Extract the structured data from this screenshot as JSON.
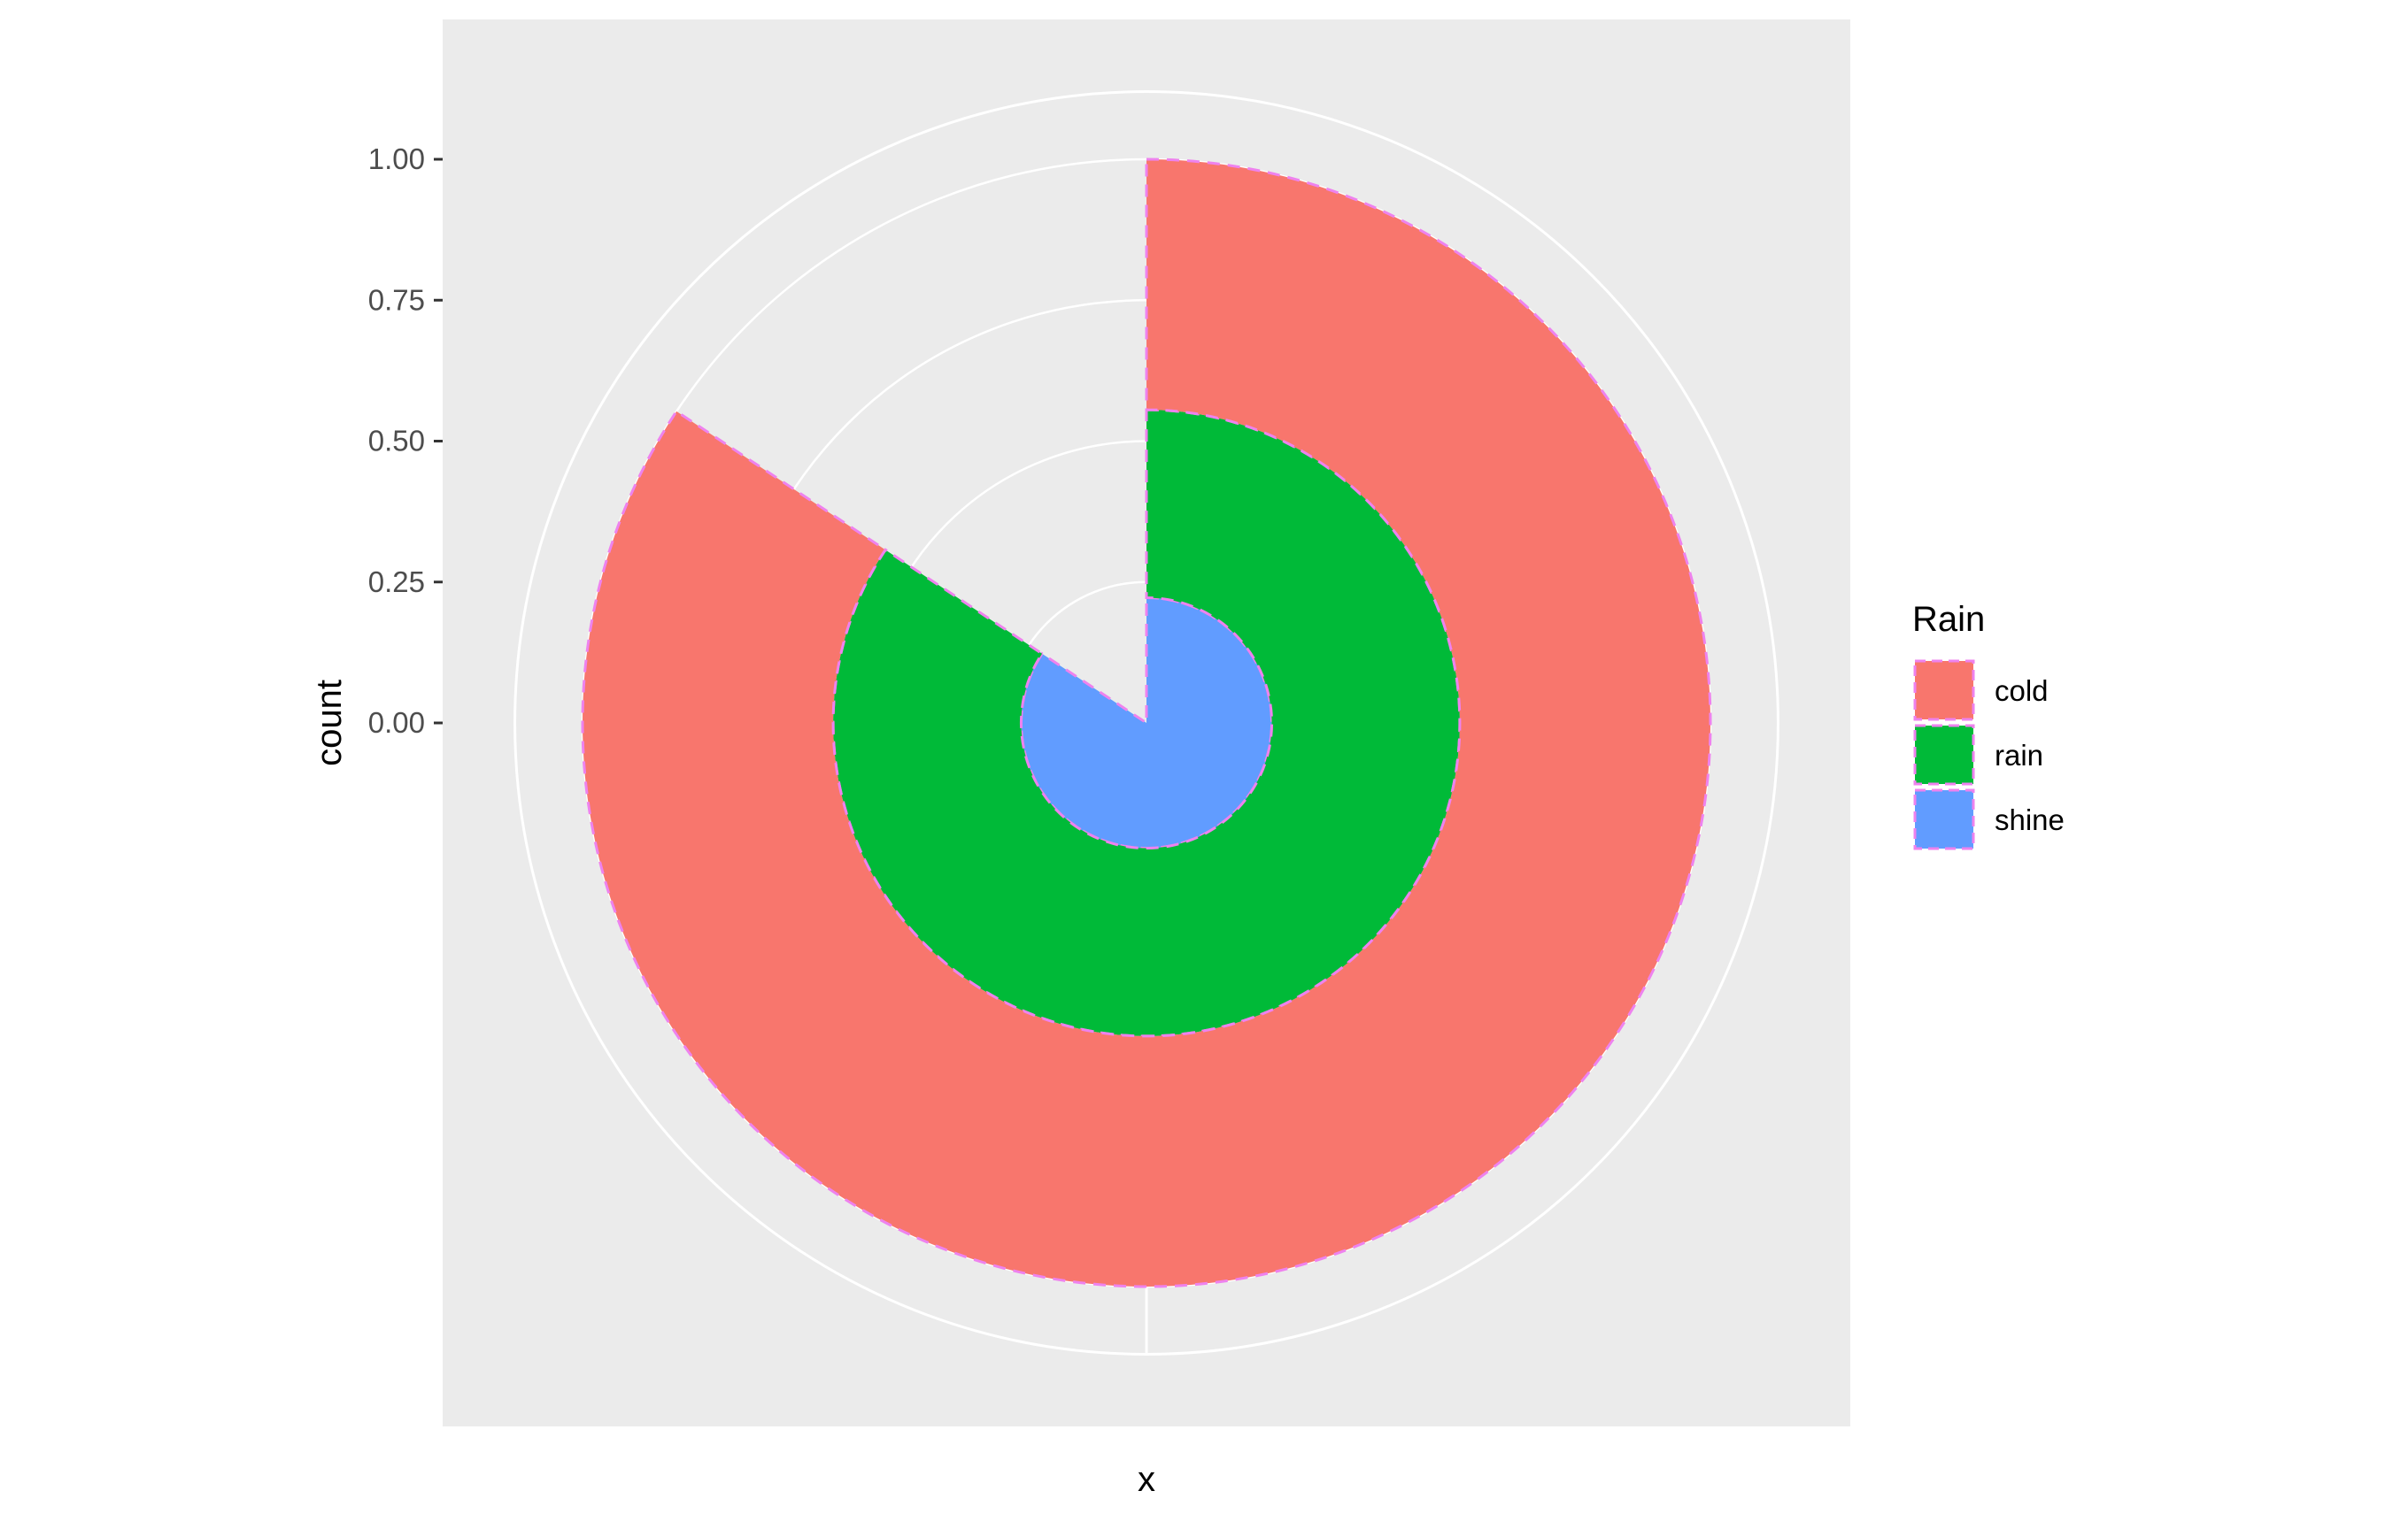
{
  "chart_data": {
    "type": "pie",
    "coord": "polar",
    "theta_var": "y",
    "x": "x",
    "xlabel": "x",
    "ylabel": "count",
    "yticks": [
      "0.00",
      "0.25",
      "0.50",
      "0.75",
      "1.00"
    ],
    "ytick_values": [
      0,
      0.25,
      0.5,
      0.75,
      1.0
    ],
    "ylim": [
      0,
      1.12
    ],
    "grid": true,
    "panel_background": "#ebebeb",
    "gridline_color": "#ffffff",
    "outline": {
      "color": "#ee82ee",
      "style": "dashed"
    },
    "legend": {
      "title": "Rain",
      "position": "right",
      "entries": [
        {
          "label": "cold",
          "color": "#F8766D"
        },
        {
          "label": "rain",
          "color": "#00BA38"
        },
        {
          "label": "shine",
          "color": "#619CFF"
        }
      ]
    },
    "bars": [
      {
        "series": "shine",
        "ymin": 0.0,
        "ymax": 0.9444,
        "inner": 0.0,
        "outer": 0.2222,
        "color": "#619CFF"
      },
      {
        "series": "rain",
        "ymin": 0.0,
        "ymax": 0.9444,
        "inner": 0.2222,
        "outer": 0.5556,
        "color": "#00BA38"
      },
      {
        "series": "cold",
        "ymin": 0.0,
        "ymax": 0.9444,
        "inner": 0.5556,
        "outer": 1.0,
        "color": "#F8766D"
      }
    ]
  }
}
